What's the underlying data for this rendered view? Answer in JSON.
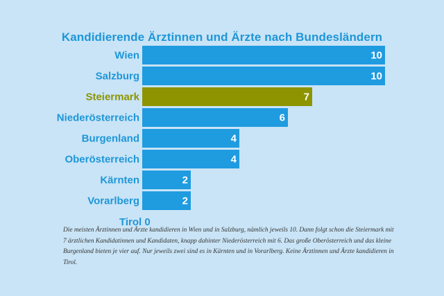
{
  "colors": {
    "background": "#c9e4f6",
    "bar": "#1f9be0",
    "highlight_bar": "#8d9400",
    "label": "#1e96d8",
    "highlight_label": "#8d9400",
    "value_text": "#ffffff",
    "caption": "#333333"
  },
  "chart_data": {
    "type": "bar",
    "orientation": "horizontal",
    "title": "Kandidierende Ärztinnen und Ärzte nach Bundesländern",
    "xlabel": "",
    "ylabel": "",
    "xlim": [
      0,
      10
    ],
    "grid": false,
    "legend": "none",
    "highlight": "Steiermark",
    "categories": [
      "Wien",
      "Salzburg",
      "Steiermark",
      "Niederösterreich",
      "Burgenland",
      "Oberösterreich",
      "Kärnten",
      "Vorarlberg",
      "Tirol"
    ],
    "values": [
      10,
      10,
      7,
      6,
      4,
      4,
      2,
      2,
      0
    ]
  },
  "caption": "Die meisten Ärztinnen und Ärzte kandidieren in Wien und in Salzburg, nämlich jeweils 10. Dann folgt schon die Steiermark mit 7 ärztlichen Kandidatinnen und Kandidaten, knapp dahinter Niederösterreich mit 6. Das große Oberösterreich und das kleine Burgenland bieten je vier auf. Nur jeweils zwei sind es in Kärnten und in Vorarlberg. Keine Ärztinnen und Ärzte kandidieren in Tirol."
}
